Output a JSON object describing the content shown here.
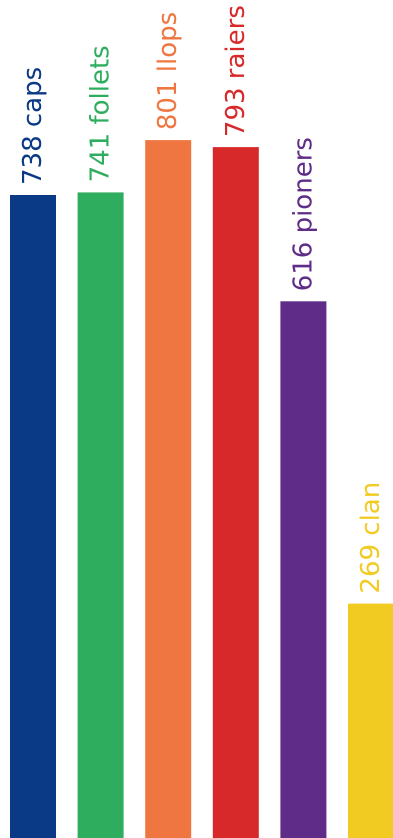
{
  "chart_data": {
    "type": "bar",
    "orientation": "vertical",
    "categories": [
      "caps",
      "follets",
      "llops",
      "raiers",
      "pioners",
      "clan"
    ],
    "values": [
      738,
      741,
      801,
      793,
      616,
      269
    ],
    "labels": [
      "738 caps",
      "741 follets",
      "801 llops",
      "793 raiers",
      "616 pioners",
      "269 clan"
    ],
    "colors": [
      "#0a3a86",
      "#2fad5e",
      "#ef7641",
      "#d7282a",
      "#5f2d87",
      "#f2cb22"
    ],
    "title": "",
    "xlabel": "",
    "ylabel": "",
    "ylim": [
      0,
      1000
    ],
    "grid": false,
    "legend": "none",
    "label_rotation": -90
  }
}
